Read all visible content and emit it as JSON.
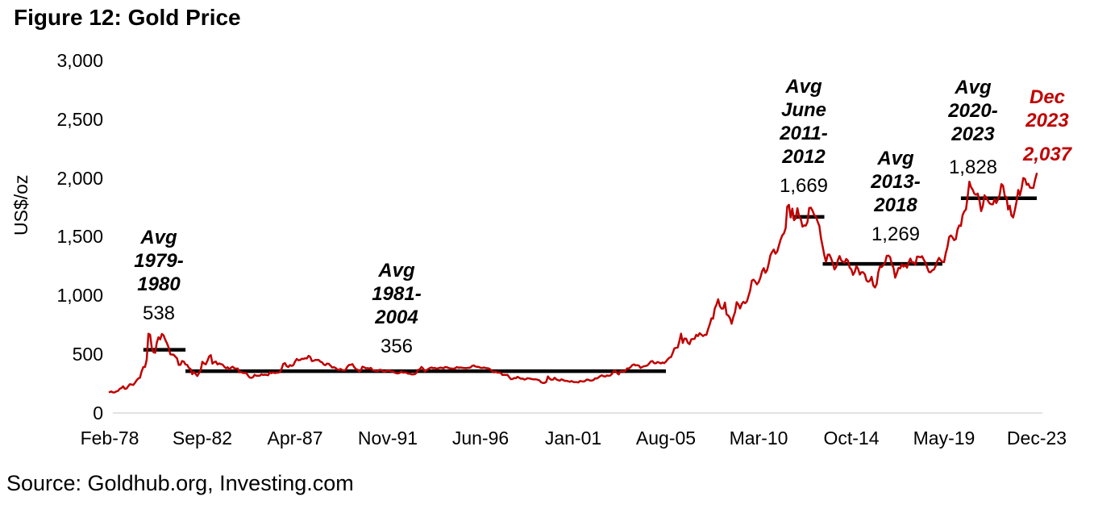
{
  "header": {
    "title": "Figure 12: Gold Price"
  },
  "footer": {
    "source": "Source: Goldhub.org, Investing.com"
  },
  "chart_data": {
    "type": "line",
    "title": "Figure 12: Gold Price",
    "ylabel": "US$/oz",
    "ylim": [
      0,
      3000
    ],
    "grid": false,
    "y_ticks": [
      "3,000",
      "2,500",
      "2,000",
      "1,500",
      "1,000",
      "500",
      "0"
    ],
    "x_ticks": [
      "Feb-78",
      "Sep-82",
      "Apr-87",
      "Nov-91",
      "Jun-96",
      "Jan-01",
      "Aug-05",
      "Mar-10",
      "Oct-14",
      "May-19",
      "Dec-23"
    ],
    "series": [
      {
        "name": "Gold price, monthly average",
        "unit": "US$/oz",
        "color": "#C00000",
        "start": "Feb-1978",
        "end": "Dec-2023",
        "interval": "monthly",
        "values": [
          178,
          183,
          175,
          176,
          184,
          189,
          206,
          212,
          227,
          206,
          208,
          227,
          245,
          242,
          239,
          257,
          279,
          294,
          301,
          355,
          391,
          392,
          455,
          675,
          665,
          553,
          517,
          513,
          600,
          644,
          627,
          673,
          661,
          623,
          594,
          557,
          499,
          498,
          495,
          480,
          465,
          409,
          410,
          443,
          437,
          413,
          410,
          384,
          374,
          330,
          350,
          333,
          315,
          339,
          364,
          436,
          422,
          414,
          444,
          481,
          492,
          420,
          433,
          438,
          413,
          422,
          416,
          412,
          394,
          381,
          389,
          371,
          386,
          394,
          381,
          377,
          378,
          347,
          348,
          341,
          340,
          341,
          320,
          303,
          299,
          304,
          325,
          317,
          317,
          317,
          329,
          324,
          326,
          325,
          321,
          345,
          339,
          346,
          340,
          343,
          343,
          349,
          377,
          418,
          424,
          399,
          391,
          408,
          401,
          408,
          438,
          460,
          449,
          451,
          461,
          460,
          466,
          464,
          486,
          477,
          442,
          444,
          452,
          451,
          451,
          437,
          431,
          413,
          407,
          421,
          419,
          404,
          387,
          390,
          384,
          371,
          367,
          375,
          365,
          362,
          367,
          394,
          409,
          410,
          416,
          393,
          374,
          369,
          352,
          363,
          395,
          389,
          380,
          382,
          378,
          384,
          364,
          363,
          358,
          357,
          367,
          367,
          356,
          348,
          359,
          360,
          361,
          354,
          354,
          344,
          339,
          337,
          341,
          353,
          343,
          345,
          344,
          335,
          335,
          329,
          329,
          330,
          342,
          367,
          372,
          392,
          378,
          355,
          364,
          374,
          383,
          387,
          382,
          384,
          377,
          381,
          386,
          385,
          380,
          391,
          390,
          384,
          379,
          378,
          376,
          382,
          391,
          385,
          388,
          386,
          384,
          383,
          383,
          385,
          387,
          400,
          405,
          396,
          393,
          392,
          385,
          383,
          387,
          383,
          381,
          378,
          369,
          355,
          346,
          352,
          344,
          344,
          341,
          324,
          324,
          323,
          325,
          306,
          288,
          289,
          298,
          296,
          308,
          299,
          292,
          293,
          284,
          289,
          296,
          294,
          291,
          287,
          287,
          286,
          283,
          277,
          261,
          256,
          257,
          264,
          311,
          293,
          283,
          284,
          300,
          286,
          280,
          275,
          286,
          281,
          274,
          274,
          270,
          266,
          272,
          265,
          262,
          263,
          260,
          272,
          270,
          268,
          272,
          284,
          283,
          276,
          276,
          281,
          295,
          294,
          303,
          314,
          321,
          313,
          310,
          319,
          317,
          319,
          333,
          357,
          359,
          341,
          328,
          355,
          357,
          351,
          360,
          379,
          379,
          390,
          407,
          414,
          405,
          407,
          403,
          384,
          392,
          398,
          400,
          405,
          420,
          439,
          442,
          424,
          423,
          434,
          429,
          422,
          430,
          424,
          437,
          456,
          470,
          476,
          510,
          550,
          555,
          557,
          611,
          675,
          596,
          634,
          632,
          598,
          586,
          627,
          630,
          631,
          665,
          655,
          679,
          667,
          655,
          665,
          665,
          713,
          755,
          806,
          803,
          890,
          922,
          968,
          910,
          888,
          889,
          940,
          839,
          829,
          807,
          760,
          816,
          858,
          943,
          924,
          890,
          929,
          946,
          934,
          949,
          997,
          1043,
          1127,
          1135,
          1118,
          1095,
          1113,
          1149,
          1205,
          1233,
          1193,
          1216,
          1271,
          1342,
          1370,
          1391,
          1356,
          1373,
          1424,
          1474,
          1511,
          1529,
          1573,
          1756,
          1772,
          1665,
          1739,
          1641,
          1656,
          1743,
          1674,
          1650,
          1586,
          1597,
          1594,
          1626,
          1745,
          1747,
          1722,
          1684,
          1671,
          1628,
          1593,
          1487,
          1414,
          1343,
          1286,
          1347,
          1348,
          1316,
          1275,
          1221,
          1244,
          1301,
          1336,
          1298,
          1288,
          1279,
          1311,
          1296,
          1238,
          1222,
          1175,
          1201,
          1251,
          1227,
          1178,
          1198,
          1198,
          1181,
          1128,
          1117,
          1125,
          1159,
          1086,
          1068,
          1097,
          1200,
          1246,
          1242,
          1260,
          1276,
          1337,
          1340,
          1326,
          1266,
          1236,
          1152,
          1192,
          1234,
          1231,
          1266,
          1246,
          1260,
          1237,
          1283,
          1314,
          1280,
          1282,
          1264,
          1331,
          1330,
          1325,
          1334,
          1303,
          1281,
          1238,
          1201,
          1198,
          1215,
          1221,
          1250,
          1291,
          1320,
          1301,
          1286,
          1284,
          1359,
          1413,
          1497,
          1511,
          1495,
          1471,
          1480,
          1561,
          1597,
          1592,
          1683,
          1716,
          1732,
          1843,
          1969,
          1922,
          1900,
          1866,
          1858,
          1867,
          1808,
          1718,
          1762,
          1853,
          1835,
          1807,
          1784,
          1777,
          1777,
          1822,
          1787,
          1817,
          1856,
          1948,
          1934,
          1848,
          1836,
          1732,
          1765,
          1681,
          1664,
          1726,
          1798,
          1898,
          1854,
          1913,
          2000,
          1992,
          1943,
          1951,
          1919,
          1916,
          1915,
          1984,
          2037
        ]
      }
    ],
    "avg_segments": [
      {
        "label": "Avg 1979-1980",
        "value": 538,
        "start_month": 20,
        "end_month": 45
      },
      {
        "label": "Avg 1981-2004",
        "value": 356,
        "start_month": 45,
        "end_month": 330
      },
      {
        "label": "Avg June 2011-2012",
        "value": 1669,
        "start_month": 405,
        "end_month": 424
      },
      {
        "label": "Avg 2013-2018",
        "value": 1269,
        "start_month": 423,
        "end_month": 494
      },
      {
        "label": "Avg 2020-2023",
        "value": 1828,
        "start_month": 505,
        "end_month": 550
      }
    ],
    "annotations": [
      {
        "lines": [
          "Avg",
          "1979-",
          "1980"
        ],
        "value": "538",
        "color": "#000000"
      },
      {
        "lines": [
          "Avg",
          "1981-",
          "2004"
        ],
        "value": "356",
        "color": "#000000"
      },
      {
        "lines": [
          "Avg",
          "June",
          "2011-",
          "2012"
        ],
        "value": "1,669",
        "color": "#000000"
      },
      {
        "lines": [
          "Avg",
          "2013-",
          "2018"
        ],
        "value": "1,269",
        "color": "#000000"
      },
      {
        "lines": [
          "Avg",
          "2020-",
          "2023"
        ],
        "value": "1,828",
        "color": "#000000"
      },
      {
        "lines": [
          "Dec",
          "2023"
        ],
        "value": "2,037",
        "color": "#C00000"
      }
    ],
    "last_point": {
      "label": "Dec 2023",
      "value": 2037
    },
    "colors": {
      "line": "#C00000",
      "avg_segment": "#000000",
      "axis_baseline": "#D9D9D9"
    }
  }
}
